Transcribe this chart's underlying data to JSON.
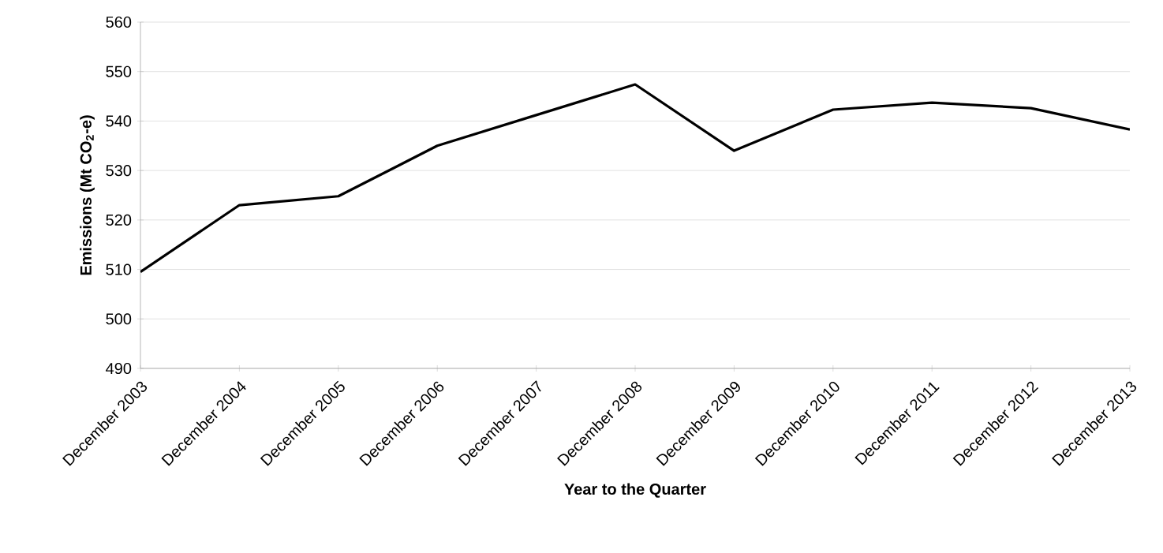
{
  "chart_data": {
    "type": "line",
    "xlabel": "Year to the Quarter",
    "ylabel": "Emissions (Mt CO$_{2}$-e)",
    "categories": [
      "December 2003",
      "December 2004",
      "December 2005",
      "December 2006",
      "December 2007",
      "December 2008",
      "December 2009",
      "December 2010",
      "December 2011",
      "December 2012",
      "December 2013"
    ],
    "series": [
      {
        "color": "#000000",
        "values": [
          509.5,
          523.0,
          524.8,
          535.0,
          541.2,
          547.4,
          534.0,
          542.3,
          543.7,
          542.6,
          538.3
        ]
      }
    ],
    "ylim": [
      490,
      560
    ],
    "yticks": [
      490,
      500,
      510,
      520,
      530,
      540,
      550,
      560
    ],
    "grid": "y",
    "marker": "none",
    "line_style": "solid"
  }
}
